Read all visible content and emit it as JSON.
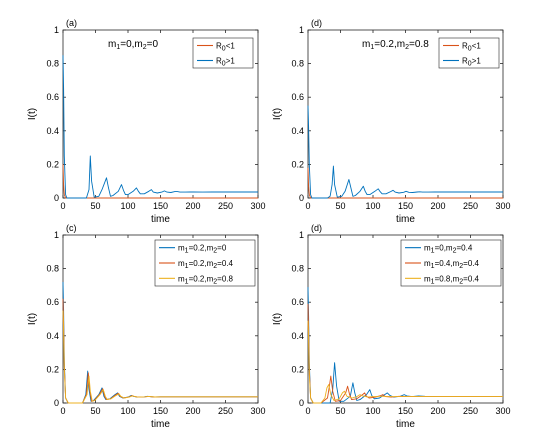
{
  "chart_data": [
    {
      "type": "line",
      "panel_label": "(a)",
      "annotation": "m₁=0,m₂=0",
      "xlabel": "time",
      "ylabel": "I(t)",
      "xlim": [
        0,
        300
      ],
      "ylim": [
        0,
        1
      ],
      "xticks": [
        "0",
        "50",
        "100",
        "150",
        "200",
        "250",
        "300"
      ],
      "yticks": [
        "0",
        "0.2",
        "0.4",
        "0.6",
        "0.8",
        "1"
      ],
      "legend_position": "top-right",
      "series": [
        {
          "name": "R₀<1",
          "color": "#d95319",
          "x": [
            0,
            1,
            2,
            4,
            300
          ],
          "y": [
            0.2,
            0.08,
            0.02,
            0.0,
            0.0
          ]
        },
        {
          "name": "R₀>1",
          "color": "#0072bd",
          "x": [
            0,
            1,
            2,
            4,
            6,
            10,
            20,
            30,
            36,
            40,
            42,
            44,
            48,
            55,
            60,
            67,
            70,
            73,
            77,
            85,
            90,
            93,
            96,
            100,
            108,
            113,
            116,
            119,
            125,
            132,
            136,
            139,
            145,
            152,
            156,
            160,
            166,
            172,
            176,
            180,
            188,
            196,
            200,
            215,
            230,
            250,
            270,
            300
          ],
          "y": [
            0.85,
            0.65,
            0.25,
            0.02,
            0.0,
            0.0,
            0.0,
            0.0,
            0.0,
            0.05,
            0.25,
            0.1,
            0.005,
            0.01,
            0.05,
            0.12,
            0.06,
            0.01,
            0.015,
            0.04,
            0.08,
            0.045,
            0.02,
            0.02,
            0.04,
            0.06,
            0.04,
            0.025,
            0.025,
            0.04,
            0.05,
            0.035,
            0.03,
            0.035,
            0.042,
            0.035,
            0.033,
            0.038,
            0.038,
            0.035,
            0.035,
            0.036,
            0.036,
            0.035,
            0.036,
            0.036,
            0.036,
            0.036
          ]
        }
      ]
    },
    {
      "type": "line",
      "panel_label": "(d)",
      "annotation": "m₁=0.2,m₂=0.8",
      "xlabel": "time",
      "ylabel": "I(t)",
      "xlim": [
        0,
        300
      ],
      "ylim": [
        0,
        1
      ],
      "xticks": [
        "0",
        "50",
        "100",
        "150",
        "200",
        "250",
        "300"
      ],
      "yticks": [
        "0",
        "0.2",
        "0.4",
        "0.6",
        "0.8",
        "1"
      ],
      "legend_position": "top-right",
      "series": [
        {
          "name": "R₀<1",
          "color": "#d95319",
          "x": [
            0,
            1,
            2,
            4,
            300
          ],
          "y": [
            0.18,
            0.07,
            0.02,
            0.0,
            0.0
          ]
        },
        {
          "name": "R₀>1",
          "color": "#0072bd",
          "x": [
            0,
            1,
            2,
            4,
            6,
            10,
            20,
            30,
            34,
            37,
            39,
            41,
            45,
            52,
            57,
            63,
            66,
            69,
            73,
            80,
            85,
            88,
            91,
            95,
            103,
            108,
            111,
            114,
            120,
            127,
            131,
            134,
            140,
            147,
            151,
            155,
            161,
            168,
            172,
            176,
            185,
            195,
            210,
            230,
            250,
            270,
            300
          ],
          "y": [
            0.55,
            0.42,
            0.2,
            0.02,
            0.0,
            0.0,
            0.0,
            0.0,
            0.01,
            0.08,
            0.19,
            0.08,
            0.005,
            0.01,
            0.04,
            0.11,
            0.06,
            0.01,
            0.015,
            0.04,
            0.07,
            0.04,
            0.02,
            0.02,
            0.04,
            0.055,
            0.038,
            0.025,
            0.025,
            0.038,
            0.046,
            0.035,
            0.03,
            0.034,
            0.04,
            0.034,
            0.033,
            0.036,
            0.037,
            0.035,
            0.035,
            0.036,
            0.036,
            0.036,
            0.036,
            0.036,
            0.036
          ]
        }
      ]
    },
    {
      "type": "line",
      "panel_label": "(c)",
      "annotation": "",
      "xlabel": "time",
      "ylabel": "I(t)",
      "xlim": [
        0,
        300
      ],
      "ylim": [
        0,
        1
      ],
      "xticks": [
        "0",
        "50",
        "100",
        "150",
        "200",
        "250",
        "300"
      ],
      "yticks": [
        "0",
        "0.2",
        "0.4",
        "0.6",
        "0.8",
        "1"
      ],
      "legend_position": "top-right",
      "series": [
        {
          "name": "m₁=0.2,m₂=0",
          "color": "#0072bd",
          "x": [
            0,
            1,
            2,
            4,
            8,
            20,
            30,
            35,
            38,
            40,
            43,
            47,
            55,
            60,
            63,
            66,
            72,
            80,
            84,
            87,
            92,
            100,
            105,
            108,
            114,
            125,
            130,
            140,
            150,
            170,
            200,
            250,
            300
          ],
          "y": [
            0.72,
            0.55,
            0.25,
            0.03,
            0.0,
            0.0,
            0.0,
            0.05,
            0.19,
            0.08,
            0.01,
            0.015,
            0.05,
            0.09,
            0.04,
            0.02,
            0.025,
            0.05,
            0.06,
            0.04,
            0.03,
            0.035,
            0.045,
            0.04,
            0.035,
            0.037,
            0.04,
            0.036,
            0.037,
            0.037,
            0.037,
            0.037,
            0.037
          ]
        },
        {
          "name": "m₁=0.2,m₂=0.4",
          "color": "#d95319",
          "x": [
            0,
            1,
            2,
            4,
            8,
            20,
            30,
            36,
            39,
            41,
            44,
            48,
            56,
            61,
            64,
            67,
            73,
            81,
            85,
            88,
            93,
            101,
            106,
            109,
            115,
            126,
            131,
            141,
            150,
            170,
            200,
            250,
            300
          ],
          "y": [
            0.62,
            0.48,
            0.22,
            0.03,
            0.0,
            0.0,
            0.0,
            0.05,
            0.18,
            0.08,
            0.01,
            0.015,
            0.05,
            0.085,
            0.04,
            0.02,
            0.025,
            0.048,
            0.058,
            0.04,
            0.03,
            0.035,
            0.044,
            0.04,
            0.035,
            0.037,
            0.039,
            0.036,
            0.037,
            0.037,
            0.037,
            0.037,
            0.037
          ]
        },
        {
          "name": "m₁=0.2,m₂=0.8",
          "color": "#edb120",
          "x": [
            0,
            1,
            2,
            4,
            8,
            20,
            30,
            37,
            40,
            42,
            45,
            49,
            57,
            62,
            65,
            68,
            74,
            82,
            86,
            89,
            94,
            102,
            107,
            110,
            116,
            127,
            132,
            142,
            150,
            170,
            200,
            250,
            300
          ],
          "y": [
            0.55,
            0.43,
            0.2,
            0.03,
            0.0,
            0.0,
            0.0,
            0.05,
            0.16,
            0.07,
            0.01,
            0.015,
            0.05,
            0.08,
            0.04,
            0.02,
            0.025,
            0.046,
            0.055,
            0.04,
            0.03,
            0.035,
            0.043,
            0.039,
            0.035,
            0.037,
            0.039,
            0.036,
            0.037,
            0.037,
            0.037,
            0.037,
            0.037
          ]
        }
      ]
    },
    {
      "type": "line",
      "panel_label": "(d)",
      "annotation": "",
      "xlabel": "time",
      "ylabel": "I(t)",
      "xlim": [
        0,
        300
      ],
      "ylim": [
        0,
        1
      ],
      "xticks": [
        "0",
        "50",
        "100",
        "150",
        "200",
        "250",
        "300"
      ],
      "yticks": [
        "0",
        "0.2",
        "0.4",
        "0.6",
        "0.8",
        "1"
      ],
      "legend_position": "top-right",
      "series": [
        {
          "name": "m₁=0,m₂=0.4",
          "color": "#0072bd",
          "x": [
            0,
            1,
            2,
            4,
            8,
            20,
            34,
            38,
            41,
            44,
            48,
            55,
            65,
            69,
            72,
            75,
            80,
            90,
            95,
            98,
            102,
            110,
            118,
            122,
            126,
            132,
            142,
            148,
            152,
            160,
            170,
            180,
            200,
            250,
            300
          ],
          "y": [
            0.69,
            0.52,
            0.24,
            0.03,
            0.0,
            0.0,
            0.0,
            0.08,
            0.24,
            0.1,
            0.01,
            0.01,
            0.04,
            0.12,
            0.06,
            0.015,
            0.02,
            0.05,
            0.08,
            0.045,
            0.025,
            0.03,
            0.05,
            0.06,
            0.045,
            0.035,
            0.04,
            0.05,
            0.042,
            0.038,
            0.042,
            0.04,
            0.038,
            0.038,
            0.038
          ]
        },
        {
          "name": "m₁=0.4,m₂=0.4",
          "color": "#d95319",
          "x": [
            0,
            1,
            2,
            4,
            8,
            20,
            30,
            33,
            35,
            38,
            42,
            50,
            58,
            61,
            64,
            67,
            75,
            84,
            87,
            90,
            94,
            104,
            112,
            115,
            119,
            128,
            140,
            160,
            200,
            250,
            300
          ],
          "y": [
            0.59,
            0.45,
            0.2,
            0.03,
            0.0,
            0.0,
            0.03,
            0.1,
            0.16,
            0.07,
            0.01,
            0.015,
            0.06,
            0.1,
            0.05,
            0.02,
            0.025,
            0.05,
            0.06,
            0.04,
            0.03,
            0.035,
            0.044,
            0.05,
            0.038,
            0.035,
            0.04,
            0.038,
            0.038,
            0.038,
            0.038
          ]
        },
        {
          "name": "m₁=0.8,m₂=0.4",
          "color": "#edb120",
          "x": [
            0,
            1,
            2,
            4,
            8,
            20,
            26,
            29,
            32,
            35,
            40,
            48,
            53,
            56,
            60,
            68,
            76,
            80,
            84,
            92,
            100,
            110,
            130,
            160,
            200,
            250,
            300
          ],
          "y": [
            0.49,
            0.38,
            0.17,
            0.03,
            0.0,
            0.0,
            0.03,
            0.09,
            0.11,
            0.05,
            0.015,
            0.025,
            0.06,
            0.07,
            0.04,
            0.03,
            0.04,
            0.05,
            0.042,
            0.035,
            0.038,
            0.04,
            0.038,
            0.038,
            0.038,
            0.038,
            0.038
          ]
        }
      ]
    }
  ]
}
